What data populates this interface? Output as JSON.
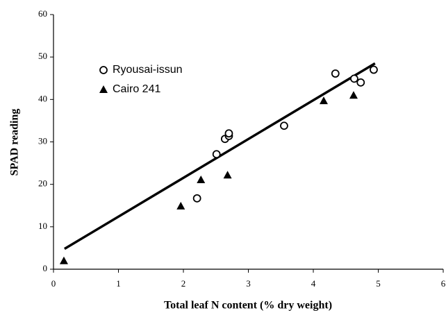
{
  "chart_data": {
    "type": "scatter",
    "x_label": "Total leaf N content (% dry weight)",
    "y_label": "SPAD reading",
    "xlim": [
      0,
      6
    ],
    "xticks": [
      0,
      1,
      2,
      3,
      4,
      5,
      6
    ],
    "ylim": [
      0,
      60
    ],
    "yticks": [
      0,
      10,
      20,
      30,
      40,
      50,
      60
    ],
    "legend": "upper left",
    "series": [
      {
        "name": "Ryousai-issun",
        "color": "#000000",
        "marker": "circle-open",
        "x": [
          2.21,
          2.51,
          2.64,
          2.7,
          2.7,
          3.55,
          4.34,
          4.63,
          4.73,
          4.93
        ],
        "values": [
          16.7,
          27.1,
          30.7,
          31.4,
          32,
          33.8,
          46.1,
          44.9,
          44,
          47
        ]
      },
      {
        "name": "Cairo 241",
        "color": "#000000",
        "marker": "triangle",
        "x": [
          0.16,
          1.96,
          2.27,
          2.68,
          4.16,
          4.62
        ],
        "values": [
          2,
          14.9,
          21.1,
          22.2,
          39.7,
          41
        ]
      }
    ],
    "fit": {
      "color": "#000000",
      "x": [
        0.17,
        4.95
      ],
      "values": [
        4.8,
        48.5
      ]
    }
  }
}
